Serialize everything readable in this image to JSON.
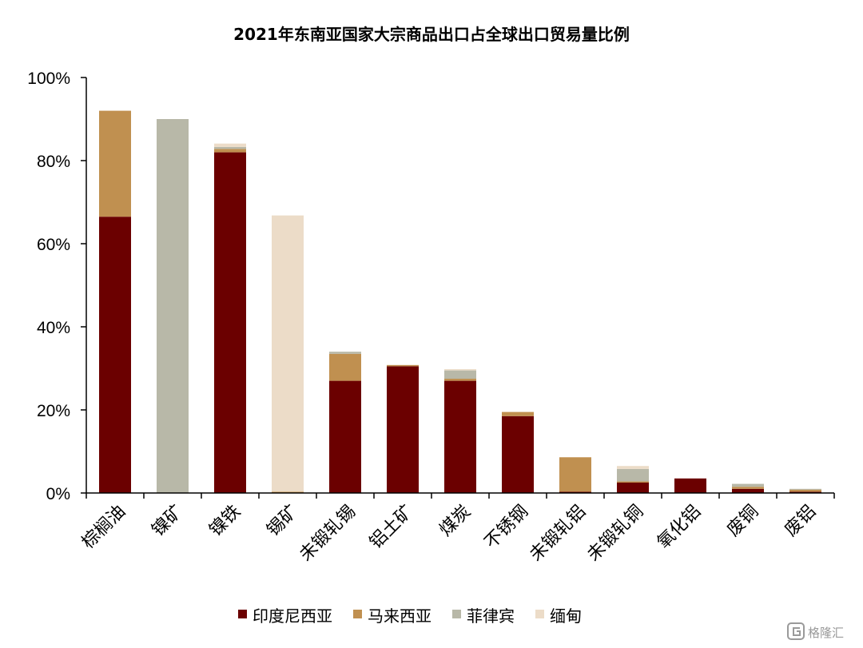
{
  "chart_data": {
    "type": "bar",
    "stacked": true,
    "title": "2021年东南亚国家大宗商品出口占全球出口贸易量比例",
    "categories": [
      "棕榈油",
      "镍矿",
      "镍铁",
      "锡矿",
      "未锻轧锡",
      "铝土矿",
      "煤炭",
      "不锈钢",
      "未锻轧铝",
      "未锻轧铜",
      "氧化铝",
      "废铜",
      "废铝"
    ],
    "series": [
      {
        "name": "印度尼西亚",
        "color": "#6b0000",
        "values": [
          66.5,
          0,
          82,
          0,
          27,
          30.5,
          27,
          18.5,
          0.3,
          2.5,
          3.5,
          1.0,
          0.3
        ]
      },
      {
        "name": "马来西亚",
        "color": "#c09050",
        "values": [
          25.5,
          0,
          0.8,
          0.3,
          6.5,
          0.3,
          0.5,
          1.0,
          8.3,
          0.3,
          0,
          0.5,
          0.5
        ]
      },
      {
        "name": "菲律宾",
        "color": "#b8b8a8",
        "values": [
          0,
          90,
          0.5,
          0,
          0.5,
          0,
          2.0,
          0,
          0,
          3.0,
          0,
          0.7,
          0.2
        ]
      },
      {
        "name": "缅甸",
        "color": "#ecdcc8",
        "values": [
          0,
          0,
          0.8,
          66.5,
          0,
          0,
          0.3,
          0,
          0,
          0.7,
          0,
          0,
          0
        ]
      }
    ],
    "ylim": [
      0,
      100
    ],
    "yticks": [
      "0%",
      "20%",
      "40%",
      "60%",
      "80%",
      "100%"
    ],
    "ytick_values": [
      0,
      20,
      40,
      60,
      80,
      100
    ],
    "legend_position": "bottom",
    "grid": false
  },
  "watermark": {
    "text": "格隆汇",
    "icon": "logo-g-icon",
    "color": "#9a9a9a"
  }
}
